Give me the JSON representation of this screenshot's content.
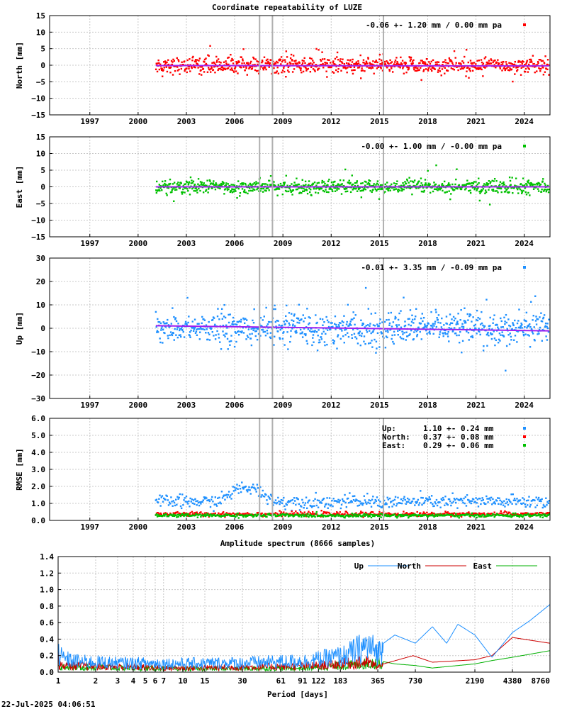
{
  "title": "Coordinate repeatability of LUZE",
  "spectrum_title": "Amplitude spectrum (8666 samples)",
  "footer_timestamp": "22-Jul-2025 04:06:51",
  "colors": {
    "north": "#ff0000",
    "east": "#00c000",
    "up": "#1e90ff",
    "trend": "#a020f0",
    "event_lines": "#b0b0b0",
    "grid": "#c8c8c8"
  },
  "chart_data": [
    {
      "id": "north",
      "type": "scatter",
      "ylabel": "North [mm]",
      "ylim": [
        -15,
        15
      ],
      "yticks": [
        -15,
        -10,
        -5,
        0,
        5,
        10,
        15
      ],
      "xlim": [
        1994.5,
        2025.6
      ],
      "xticks": [
        1997,
        2000,
        2003,
        2006,
        2009,
        2012,
        2015,
        2018,
        2021,
        2024
      ],
      "stat_text": "-0.06 +- 1.20 mm /  0.00 mm pa",
      "data_start": 2001.1,
      "data_end": 2025.55,
      "scatter_sigma": 1.2,
      "trend": [
        [
          2001.1,
          -0.1
        ],
        [
          2025.55,
          -0.2
        ]
      ],
      "event_lines": [
        2007.55,
        2008.35,
        2015.25
      ],
      "color": "#ff0000",
      "grid": true
    },
    {
      "id": "east",
      "type": "scatter",
      "ylabel": "East [mm]",
      "ylim": [
        -15,
        15
      ],
      "yticks": [
        -15,
        -10,
        -5,
        0,
        5,
        10,
        15
      ],
      "xlim": [
        1994.5,
        2025.6
      ],
      "xticks": [
        1997,
        2000,
        2003,
        2006,
        2009,
        2012,
        2015,
        2018,
        2021,
        2024
      ],
      "stat_text": "-0.00 +- 1.00 mm / -0.00 mm pa",
      "data_start": 2001.1,
      "data_end": 2025.55,
      "scatter_sigma": 1.0,
      "trend": [
        [
          2001.1,
          0.0
        ],
        [
          2025.55,
          0.0
        ]
      ],
      "event_lines": [
        2007.55,
        2008.35,
        2015.25
      ],
      "color": "#00c000",
      "grid": true
    },
    {
      "id": "up",
      "type": "scatter",
      "ylabel": "Up [mm]",
      "ylim": [
        -30,
        30
      ],
      "yticks": [
        -30,
        -20,
        -10,
        0,
        10,
        20,
        30
      ],
      "xlim": [
        1994.5,
        2025.6
      ],
      "xticks": [
        1997,
        2000,
        2003,
        2006,
        2009,
        2012,
        2015,
        2018,
        2021,
        2024
      ],
      "stat_text": "-0.01 +- 3.35 mm / -0.09 mm pa",
      "data_start": 2001.1,
      "data_end": 2025.55,
      "scatter_sigma": 3.35,
      "trend": [
        [
          2001.1,
          1.1
        ],
        [
          2025.55,
          -1.1
        ]
      ],
      "event_lines": [
        2007.55,
        2008.35,
        2015.25
      ],
      "color": "#1e90ff",
      "grid": true
    },
    {
      "id": "rmse",
      "type": "scatter",
      "ylabel": "RMSE [mm]",
      "ylim": [
        0,
        6
      ],
      "yticks": [
        0.0,
        1.0,
        2.0,
        3.0,
        4.0,
        5.0,
        6.0
      ],
      "xlim": [
        1994.5,
        2025.6
      ],
      "xticks": [
        1997,
        2000,
        2003,
        2006,
        2009,
        2012,
        2015,
        2018,
        2021,
        2024
      ],
      "event_lines": [
        2007.55,
        2008.35,
        2015.25
      ],
      "series": [
        {
          "name": "Up:",
          "stats": "1.10 +- 0.24 mm",
          "mean": 1.1,
          "spread": 0.24,
          "color": "#1e90ff"
        },
        {
          "name": "North:",
          "stats": "0.37 +- 0.08 mm",
          "mean": 0.37,
          "spread": 0.08,
          "color": "#ff0000"
        },
        {
          "name": "East:",
          "stats": "0.29 +- 0.06 mm",
          "mean": 0.29,
          "spread": 0.06,
          "color": "#00c000"
        }
      ],
      "grid": true
    },
    {
      "id": "spectrum",
      "type": "line",
      "title": "Amplitude spectrum (8666 samples)",
      "xlabel": "Period [days]",
      "xscale": "log",
      "xlim": [
        1,
        8760
      ],
      "ylim": [
        0,
        1.4
      ],
      "yticks": [
        0.0,
        0.2,
        0.4,
        0.6,
        0.8,
        1.0,
        1.2,
        1.4
      ],
      "xticks": [
        1,
        2,
        3,
        4,
        5,
        6,
        7,
        10,
        15,
        30,
        61,
        91,
        122,
        183,
        365,
        730,
        2190,
        4380,
        8760
      ],
      "legend_position": "top-right",
      "series": [
        {
          "name": "Up",
          "color": "#1e90ff",
          "points": [
            [
              1,
              0.82
            ],
            [
              1.02,
              0.25
            ],
            [
              1.1,
              0.2
            ],
            [
              1.5,
              0.16
            ],
            [
              3,
              0.14
            ],
            [
              10,
              0.13
            ],
            [
              30,
              0.14
            ],
            [
              100,
              0.17
            ],
            [
              200,
              0.25
            ],
            [
              300,
              0.4
            ],
            [
              365,
              0.3
            ],
            [
              500,
              0.45
            ],
            [
              730,
              0.35
            ],
            [
              1000,
              0.55
            ],
            [
              1300,
              0.35
            ],
            [
              1600,
              0.58
            ],
            [
              2190,
              0.45
            ],
            [
              3000,
              0.18
            ],
            [
              4380,
              0.48
            ],
            [
              6000,
              0.62
            ],
            [
              8760,
              0.82
            ]
          ]
        },
        {
          "name": "North",
          "color": "#cc0000",
          "points": [
            [
              1,
              0.35
            ],
            [
              1.02,
              0.1
            ],
            [
              10,
              0.06
            ],
            [
              100,
              0.09
            ],
            [
              300,
              0.15
            ],
            [
              365,
              0.08
            ],
            [
              700,
              0.2
            ],
            [
              1000,
              0.12
            ],
            [
              2190,
              0.15
            ],
            [
              3000,
              0.2
            ],
            [
              4380,
              0.42
            ],
            [
              8760,
              0.35
            ]
          ]
        },
        {
          "name": "East",
          "color": "#00b000",
          "points": [
            [
              1,
              0.18
            ],
            [
              1.02,
              0.08
            ],
            [
              10,
              0.05
            ],
            [
              100,
              0.06
            ],
            [
              365,
              0.14
            ],
            [
              500,
              0.1
            ],
            [
              730,
              0.08
            ],
            [
              1000,
              0.05
            ],
            [
              2190,
              0.1
            ],
            [
              3000,
              0.14
            ],
            [
              4380,
              0.18
            ],
            [
              8760,
              0.26
            ]
          ]
        }
      ],
      "grid": true
    }
  ]
}
